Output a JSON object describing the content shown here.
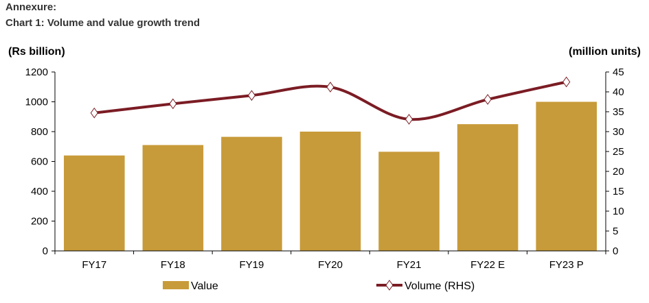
{
  "header": {
    "annexure": "Annexure:",
    "chart_title": "Chart 1: Volume and value growth trend"
  },
  "chart_data": {
    "type": "bar",
    "title": "Chart 1: Volume and value growth trend",
    "categories": [
      "FY17",
      "FY18",
      "FY19",
      "FY20",
      "FY21",
      "FY22 E",
      "FY23 P"
    ],
    "ylabel_left": "(Rs billion)",
    "ylabel_right": "(million units)",
    "ylim_left": [
      0,
      1200
    ],
    "yticks_left": [
      0,
      200,
      400,
      600,
      800,
      1000,
      1200
    ],
    "ylim_right": [
      0,
      45
    ],
    "yticks_right": [
      0,
      5,
      10,
      15,
      20,
      25,
      30,
      35,
      40,
      45
    ],
    "grid": false,
    "legend_position": "bottom",
    "series": [
      {
        "name": "Value",
        "type": "bar",
        "axis": "left",
        "color": "#C89B3A",
        "values": [
          640,
          710,
          765,
          800,
          665,
          850,
          1000
        ]
      },
      {
        "name": "Volume (RHS)",
        "type": "line",
        "axis": "right",
        "color": "#7B1C24",
        "marker": "diamond",
        "values": [
          34.7,
          37.0,
          39.1,
          41.2,
          33.1,
          38.1,
          42.5
        ]
      }
    ]
  }
}
